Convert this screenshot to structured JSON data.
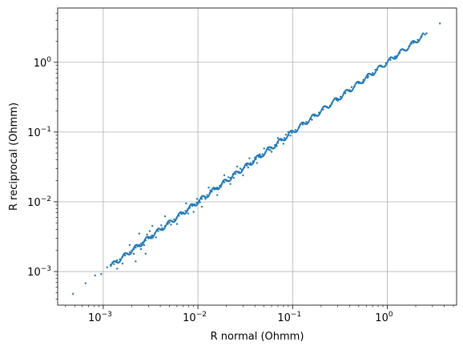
{
  "chart_data": {
    "type": "scatter",
    "title": "",
    "xlabel": "R normal (Ohmm)",
    "ylabel": "R reciprocal (Ohmm)",
    "xscale": "log",
    "yscale": "log",
    "xlim": [
      0.00033,
      5.4
    ],
    "ylim": [
      0.00033,
      6.0
    ],
    "x_ticks": [
      {
        "value": 0.001,
        "label": "10",
        "exp": "−3"
      },
      {
        "value": 0.01,
        "label": "10",
        "exp": "−2"
      },
      {
        "value": 0.1,
        "label": "10",
        "exp": "−1"
      },
      {
        "value": 1,
        "label": "10",
        "exp": "0"
      }
    ],
    "y_ticks": [
      {
        "value": 0.001,
        "label": "10",
        "exp": "−3"
      },
      {
        "value": 0.01,
        "label": "10",
        "exp": "−2"
      },
      {
        "value": 0.1,
        "label": "10",
        "exp": "−1"
      },
      {
        "value": 1,
        "label": "10",
        "exp": "0"
      }
    ],
    "grid": true,
    "legend": "none",
    "marker_color": "#1f77b4",
    "series": [
      {
        "x": [
          0.00048,
          0.00065,
          0.00082,
          0.00095,
          0.0011,
          0.0012,
          0.0013,
          0.00135,
          0.0014,
          0.0015,
          0.0016,
          0.0017,
          0.0018,
          0.0019,
          0.002,
          0.0021,
          0.0022,
          0.0023,
          0.0024,
          0.0025,
          0.0026,
          0.0027,
          0.0028,
          0.003,
          0.0032,
          0.0033,
          0.0035,
          0.0038,
          0.004,
          0.0042,
          0.0045,
          0.0048,
          0.005,
          0.0053,
          0.0056,
          0.006,
          0.0063,
          0.0067,
          0.007,
          0.0074,
          0.0078,
          0.0082,
          0.0087,
          0.0092,
          0.0097,
          0.0103,
          0.011,
          0.0118,
          0.0125,
          0.0133,
          0.014,
          0.015,
          0.016,
          0.017,
          0.018,
          0.019,
          0.02,
          0.022,
          0.023,
          0.025,
          0.027,
          0.029,
          0.031,
          0.033,
          0.036,
          0.038,
          0.041,
          0.044,
          0.048,
          0.052,
          0.056,
          0.06,
          0.065,
          0.07,
          0.076,
          0.082,
          0.09,
          0.098,
          0.107,
          0.117,
          0.128,
          0.14,
          0.155,
          0.17,
          0.19,
          0.21,
          0.23,
          0.26,
          0.29,
          0.32,
          0.36,
          0.4,
          0.45,
          0.5,
          0.56,
          0.63,
          0.7,
          0.78,
          0.87,
          0.97,
          1.08,
          1.2,
          1.35,
          1.5,
          1.7,
          1.9,
          2.1,
          2.3,
          2.5,
          2.6,
          3.6,
          0.0022,
          0.0028,
          0.0024,
          0.0033,
          0.0045,
          0.006,
          0.0075,
          0.009,
          0.011,
          0.013,
          0.016,
          0.019,
          0.022,
          0.026,
          0.03,
          0.035,
          0.042,
          0.05,
          0.06,
          0.07,
          0.08,
          0.09,
          0.0016,
          0.0019,
          0.0021,
          0.0025,
          0.0029,
          0.0036,
          0.0041,
          0.0052,
          0.0066,
          0.0079,
          0.0098,
          0.012,
          0.0145,
          0.0175,
          0.021,
          0.024,
          0.028,
          0.034,
          0.04,
          0.046,
          0.055,
          0.068,
          0.085,
          0.12,
          0.16,
          0.22,
          0.3,
          0.42,
          0.55,
          0.75,
          0.0014,
          0.0031,
          0.0027,
          0.0058,
          0.0085,
          0.0105,
          0.0135,
          0.0165,
          0.0235,
          0.0275,
          0.0325,
          0.0385,
          0.045,
          0.058,
          0.075,
          0.095,
          0.13,
          0.25,
          0.35,
          0.62,
          0.85,
          1.25,
          1.8
        ],
        "y": [
          0.00048,
          0.00068,
          0.00088,
          0.00092,
          0.00115,
          0.00125,
          0.00128,
          0.0014,
          0.00145,
          0.0015,
          0.00162,
          0.0017,
          0.0018,
          0.0019,
          0.002,
          0.0021,
          0.0022,
          0.0023,
          0.0024,
          0.0025,
          0.0026,
          0.0027,
          0.0028,
          0.003,
          0.0032,
          0.0033,
          0.0035,
          0.0038,
          0.004,
          0.0042,
          0.0045,
          0.0048,
          0.005,
          0.0053,
          0.0056,
          0.006,
          0.0063,
          0.0067,
          0.007,
          0.0074,
          0.0078,
          0.0082,
          0.0087,
          0.0092,
          0.0097,
          0.0103,
          0.011,
          0.0118,
          0.0125,
          0.0133,
          0.014,
          0.015,
          0.016,
          0.017,
          0.018,
          0.019,
          0.02,
          0.022,
          0.023,
          0.025,
          0.027,
          0.029,
          0.031,
          0.033,
          0.036,
          0.038,
          0.041,
          0.044,
          0.048,
          0.052,
          0.056,
          0.06,
          0.065,
          0.07,
          0.076,
          0.082,
          0.09,
          0.098,
          0.107,
          0.117,
          0.128,
          0.14,
          0.155,
          0.17,
          0.19,
          0.21,
          0.23,
          0.26,
          0.29,
          0.32,
          0.36,
          0.4,
          0.45,
          0.5,
          0.56,
          0.63,
          0.7,
          0.78,
          0.87,
          0.97,
          1.08,
          1.2,
          1.35,
          1.5,
          1.7,
          1.9,
          2.1,
          2.3,
          2.5,
          2.6,
          3.6,
          0.0014,
          0.0018,
          0.0035,
          0.0045,
          0.0062,
          0.0048,
          0.0095,
          0.0072,
          0.0085,
          0.016,
          0.0125,
          0.024,
          0.018,
          0.032,
          0.024,
          0.042,
          0.036,
          0.058,
          0.052,
          0.082,
          0.068,
          0.1,
          0.0013,
          0.0024,
          0.0018,
          0.0021,
          0.0034,
          0.0031,
          0.0046,
          0.0047,
          0.0071,
          0.0068,
          0.011,
          0.011,
          0.0155,
          0.0165,
          0.0225,
          0.022,
          0.03,
          0.031,
          0.043,
          0.043,
          0.06,
          0.063,
          0.092,
          0.128,
          0.15,
          0.235,
          0.28,
          0.44,
          0.52,
          0.78,
          0.0011,
          0.0038,
          0.0024,
          0.0055,
          0.0092,
          0.0098,
          0.0145,
          0.0155,
          0.025,
          0.026,
          0.034,
          0.036,
          0.048,
          0.055,
          0.079,
          0.089,
          0.137,
          0.24,
          0.37,
          0.6,
          0.88,
          1.22,
          1.85
        ]
      }
    ]
  }
}
